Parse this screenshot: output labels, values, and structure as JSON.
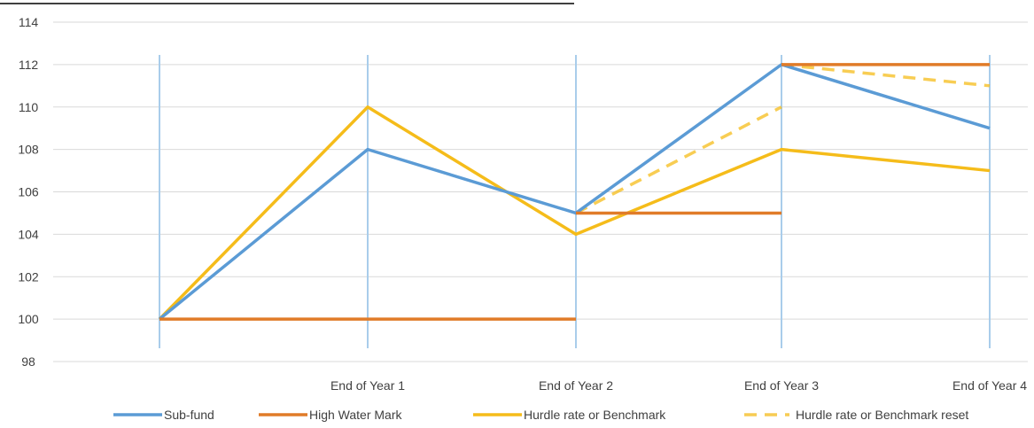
{
  "chart_data": {
    "type": "line",
    "title": "",
    "xlabel": "",
    "ylabel": "",
    "categories": [
      "",
      "End of Year 1",
      "End of Year 2",
      "End of Year 3",
      "End of Year 4"
    ],
    "ylim": [
      98,
      114
    ],
    "yticks": [
      98,
      100,
      102,
      104,
      106,
      108,
      110,
      112,
      114
    ],
    "grid": true,
    "legend_position": "bottom",
    "series": [
      {
        "name": "Sub-fund",
        "color": "#5B9BD5",
        "style": "solid",
        "segments": [
          [
            [
              0,
              100
            ],
            [
              1,
              108
            ],
            [
              2,
              105
            ],
            [
              3,
              112
            ],
            [
              4,
              109
            ]
          ]
        ]
      },
      {
        "name": "High Water Mark",
        "color": "#E07B28",
        "style": "solid",
        "segments": [
          [
            [
              0,
              100
            ],
            [
              2,
              100
            ]
          ],
          [
            [
              2,
              105
            ],
            [
              3,
              105
            ]
          ],
          [
            [
              3,
              112
            ],
            [
              4,
              112
            ]
          ]
        ]
      },
      {
        "name": "Hurdle rate or Benchmark",
        "color": "#F5BC1A",
        "style": "solid",
        "segments": [
          [
            [
              0,
              100
            ],
            [
              1,
              110
            ],
            [
              2,
              104
            ],
            [
              3,
              108
            ],
            [
              4,
              107
            ]
          ]
        ]
      },
      {
        "name": "Hurdle rate or Benchmark reset",
        "color": "#F5BC1A",
        "style": "dashed",
        "segments": [
          [
            [
              2,
              105
            ],
            [
              3,
              110
            ]
          ],
          [
            [
              3,
              112
            ],
            [
              4,
              111
            ]
          ]
        ]
      }
    ]
  }
}
